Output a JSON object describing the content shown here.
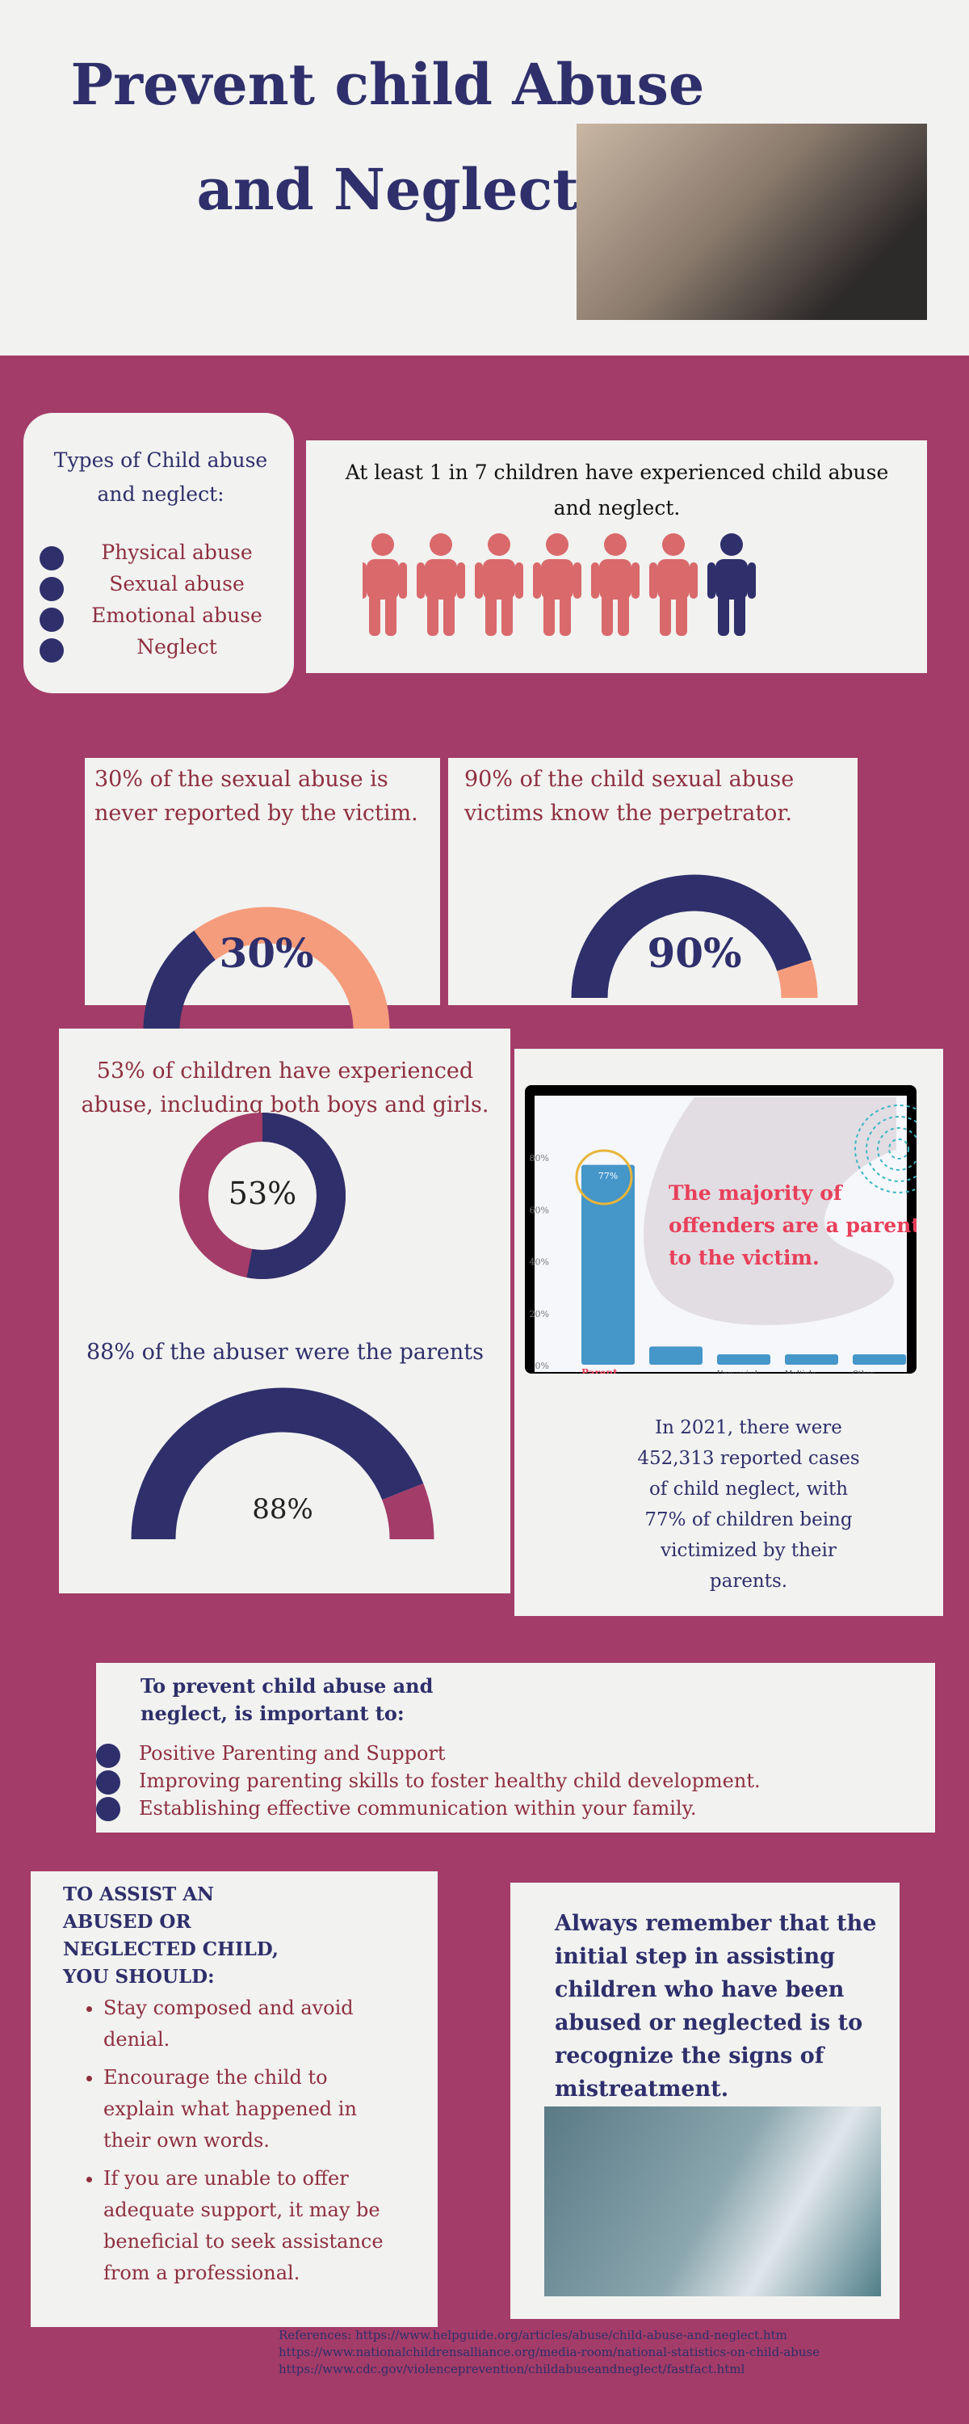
{
  "header": {
    "title": "Prevent child Abuse and Neglect"
  },
  "types": {
    "heading": "Types of Child abuse and neglect:",
    "items": [
      "Physical abuse",
      "Sexual abuse",
      "Emotional abuse",
      "Neglect"
    ]
  },
  "one_in_seven": {
    "text": "At least 1 in 7 children have experienced child abuse and neglect.",
    "icons_total": 7,
    "icons_highlighted": 1
  },
  "gauges": [
    {
      "text": "30% of the sexual abuse is never reported  by the victim.",
      "label": "30%",
      "value": 30
    },
    {
      "text": "90% of the child sexual abuse victims know the perpetrator.",
      "label": "90%",
      "value": 90
    },
    {
      "text": "53% of children have experienced abuse, including both boys and girls.",
      "label": "53%",
      "value": 53
    },
    {
      "text": "88% of the abuser were the parents",
      "label": "88%",
      "value": 88
    }
  ],
  "colors": {
    "navy": "#2e2f6b",
    "peach": "#f59c7c",
    "magenta": "#a33c68",
    "bar": "#4596c9",
    "red_text": "#e8405a"
  },
  "chart_data": {
    "type": "bar",
    "categories": [
      "Parent",
      "Other relative",
      "Unmarried partner of parent",
      "Multiple relationships with victim",
      "Other nonrelative"
    ],
    "values": [
      77,
      7,
      4,
      4,
      4
    ],
    "data_label": "77%",
    "yticks": [
      "0%",
      "20%",
      "40%",
      "60%",
      "80%"
    ],
    "ylim": [
      0,
      80
    ],
    "annotation": "The majority of offenders are a parent to the victim."
  },
  "neglect_stat": "In 2021, there were 452,313 reported cases of child neglect, with 77% of children being victimized by their parents.",
  "prevent": {
    "heading": "To prevent child abuse and neglect, is important to:",
    "items": [
      "Positive Parenting and Support",
      "Improving parenting skills to foster healthy child development.",
      "Establishing effective communication within your family."
    ]
  },
  "assist": {
    "heading": "TO ASSIST AN ABUSED OR NEGLECTED CHILD, YOU SHOULD:",
    "items": [
      "Stay composed and avoid denial.",
      "Encourage the child to explain what happened in their own words.",
      "If you are unable to offer adequate support, it may be beneficial to seek assistance from a professional."
    ]
  },
  "remember": "Always remember that the initial step in assisting children who have been abused or neglected is to recognize the signs of mistreatment.",
  "references": [
    "References:  https://www.helpguide.org/articles/abuse/child-abuse-and-neglect.htm",
    "https://www.nationalchildrensalliance.org/media-room/national-statistics-on-child-abuse",
    "https://www.cdc.gov/violenceprevention/childabuseandneglect/fastfact.html"
  ]
}
